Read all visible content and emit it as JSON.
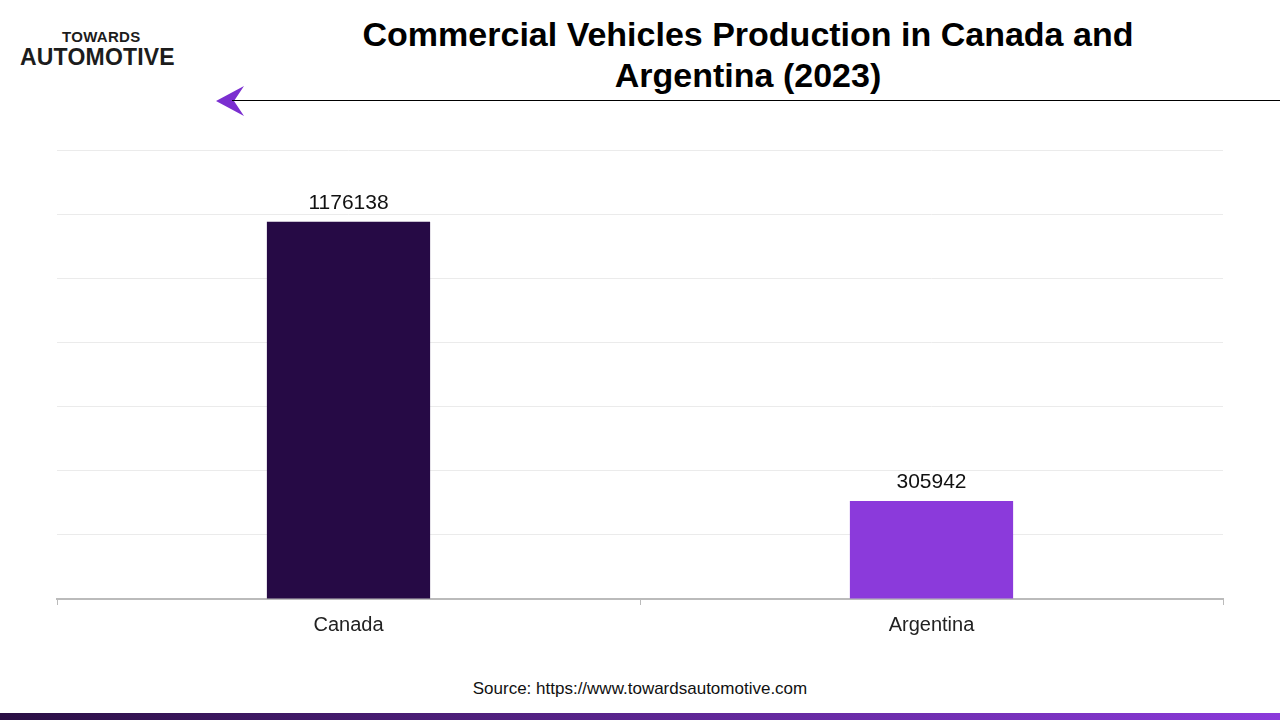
{
  "logo": {
    "top": "TOWARDS",
    "bottom": "AUTOMOTIVE"
  },
  "chart_data": {
    "type": "bar",
    "title": "Commercial Vehicles Production in Canada and Argentina (2023)",
    "categories": [
      "Canada",
      "Argentina"
    ],
    "values": [
      1176138,
      305942
    ],
    "colors": [
      "#260a45",
      "#8b3adb"
    ],
    "ylim": [
      0,
      1400000
    ],
    "yticks": [
      0,
      200000,
      400000,
      600000,
      800000,
      1000000,
      1200000,
      1400000
    ],
    "grid": true,
    "data_labels": true,
    "tick_labels": "x",
    "source": "Source: https://www.towardsautomotive.com"
  }
}
